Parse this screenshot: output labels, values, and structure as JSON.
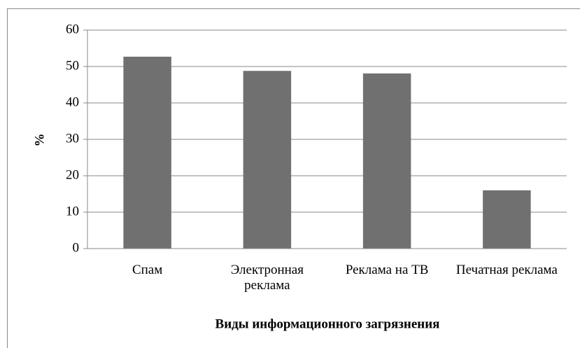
{
  "chart_data": {
    "type": "bar",
    "categories": [
      "Спам",
      "Электронная реклама",
      "Реклама на ТВ",
      "Печатная реклама"
    ],
    "values": [
      52.7,
      48.8,
      48.1,
      16
    ],
    "color": "#707070",
    "ylim": [
      0,
      60
    ],
    "yticks": [
      0,
      10,
      20,
      30,
      40,
      50,
      60
    ],
    "grid": true,
    "y_label": "%",
    "x_label": "Виды информационного загрязнения"
  }
}
